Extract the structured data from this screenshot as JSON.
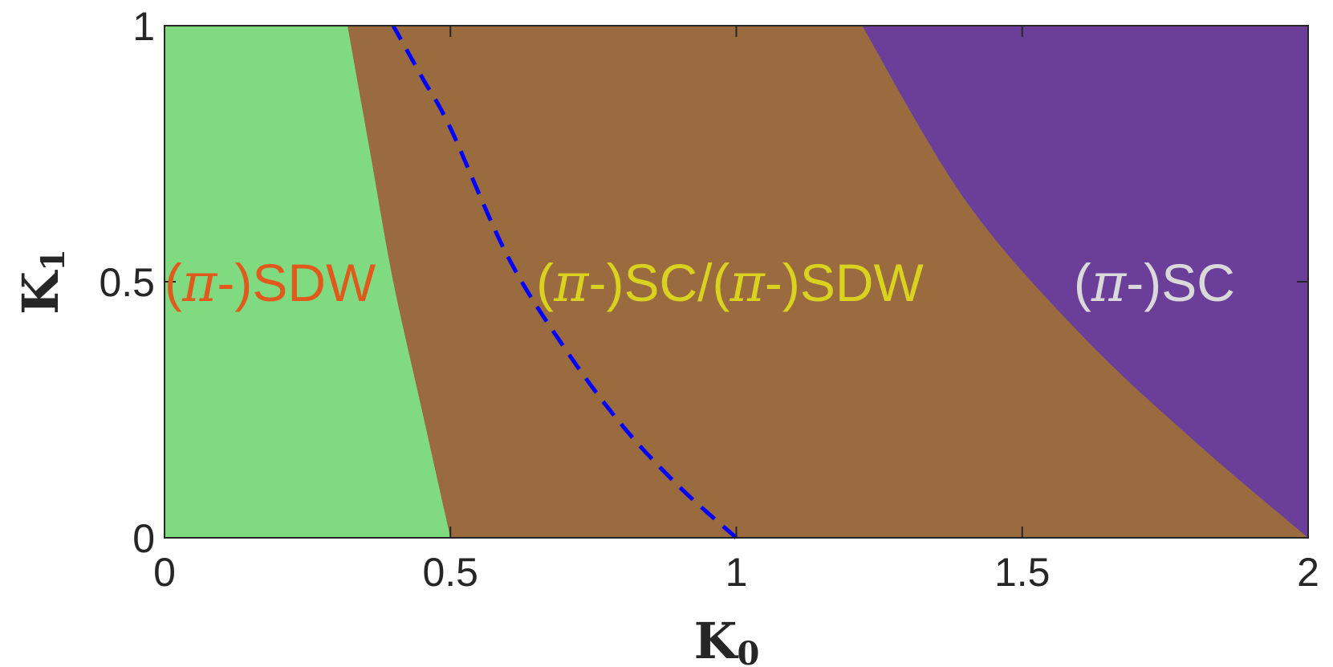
{
  "chart_data": {
    "type": "area",
    "xlabel": "K",
    "xlabel_sub": "0",
    "ylabel": "K",
    "ylabel_sub": "1",
    "xlim": [
      0,
      2
    ],
    "ylim": [
      0,
      1
    ],
    "x_ticks": [
      {
        "value": 0,
        "label": "0"
      },
      {
        "value": 0.5,
        "label": "0.5"
      },
      {
        "value": 1,
        "label": "1"
      },
      {
        "value": 1.5,
        "label": "1.5"
      },
      {
        "value": 2,
        "label": "2"
      }
    ],
    "y_ticks": [
      {
        "value": 0,
        "label": "0"
      },
      {
        "value": 0.5,
        "label": "0.5"
      },
      {
        "value": 1,
        "label": "1"
      }
    ],
    "grid": false,
    "regions": [
      {
        "label_parts": [
          "(",
          "π",
          "-)SDW"
        ],
        "fill": "#80db80",
        "label_color": "#e05a1e",
        "label_at": [
          0.0,
          0.5
        ],
        "boundary": {
          "x": [
            0.5,
            0.45,
            0.4,
            0.36,
            0.32
          ],
          "y": [
            0.0,
            0.25,
            0.5,
            0.75,
            1.0
          ]
        }
      },
      {
        "label_parts": [
          "(",
          "π",
          "-)SC/(",
          "π",
          "-)SDW"
        ],
        "fill": "#996b3f",
        "label_color": "#d9d21f",
        "label_at": [
          0.65,
          0.5
        ]
      },
      {
        "label_parts": [
          "(",
          "π",
          "-)SC"
        ],
        "fill": "#6b3f99",
        "label_color": "#d9d9d9",
        "label_at": [
          1.59,
          0.5
        ],
        "boundary": {
          "x": [
            2.0,
            1.8,
            1.6,
            1.4,
            1.22
          ],
          "y": [
            0.0,
            0.19,
            0.4,
            0.66,
            1.0
          ]
        }
      }
    ],
    "dashed_curve": {
      "color": "#0000ff",
      "x": [
        1.0,
        0.9,
        0.8,
        0.7,
        0.6,
        0.5,
        0.45,
        0.4
      ],
      "y": [
        0.0,
        0.1,
        0.22,
        0.37,
        0.55,
        0.8,
        0.9,
        1.0
      ]
    }
  }
}
